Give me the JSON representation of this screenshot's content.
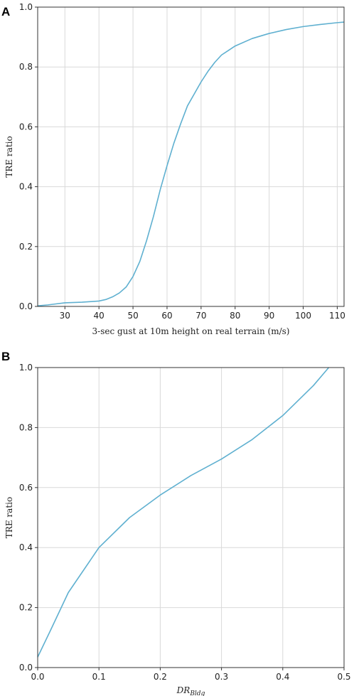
{
  "chart_data": [
    {
      "panel": "A",
      "type": "line",
      "title": "",
      "xlabel": "3-sec gust at 10m height on real terrain (m/s)",
      "ylabel": "TRE ratio",
      "xlim": [
        22,
        112
      ],
      "ylim": [
        0,
        1.0
      ],
      "xticks": [
        30,
        40,
        50,
        60,
        70,
        80,
        90,
        100,
        110
      ],
      "yticks": [
        0.0,
        0.2,
        0.4,
        0.6,
        0.8,
        1.0
      ],
      "xtick_labels": [
        "30",
        "40",
        "50",
        "60",
        "70",
        "80",
        "90",
        "100",
        "110"
      ],
      "ytick_labels": [
        "0.0",
        "0.2",
        "0.4",
        "0.6",
        "0.8",
        "1.0"
      ],
      "grid": true,
      "color": "#5fb0d0",
      "series": [
        {
          "x": [
            22,
            25,
            30,
            35,
            40,
            42,
            44,
            46,
            48,
            50,
            52,
            54,
            56,
            58,
            60,
            62,
            64,
            66,
            68,
            70,
            72,
            74,
            76,
            78,
            80,
            85,
            90,
            95,
            100,
            105,
            110,
            112
          ],
          "y": [
            0.002,
            0.005,
            0.012,
            0.014,
            0.018,
            0.023,
            0.032,
            0.045,
            0.065,
            0.1,
            0.15,
            0.22,
            0.3,
            0.39,
            0.47,
            0.545,
            0.61,
            0.67,
            0.71,
            0.75,
            0.785,
            0.815,
            0.84,
            0.855,
            0.87,
            0.895,
            0.912,
            0.925,
            0.935,
            0.942,
            0.948,
            0.95
          ]
        }
      ]
    },
    {
      "panel": "B",
      "type": "line",
      "title": "",
      "xlabel_main": "DR",
      "xlabel_sub": "Bldg",
      "ylabel": "TRE ratio",
      "xlim": [
        0,
        0.5
      ],
      "ylim": [
        0,
        1.0
      ],
      "xticks": [
        0.0,
        0.1,
        0.2,
        0.3,
        0.4,
        0.5
      ],
      "yticks": [
        0.0,
        0.2,
        0.4,
        0.6,
        0.8,
        1.0
      ],
      "xtick_labels": [
        "0.0",
        "0.1",
        "0.2",
        "0.3",
        "0.4",
        "0.5"
      ],
      "ytick_labels": [
        "0.0",
        "0.2",
        "0.4",
        "0.6",
        "0.8",
        "1.0"
      ],
      "grid": true,
      "color": "#5fb0d0",
      "series": [
        {
          "x": [
            0.0,
            0.02,
            0.05,
            0.1,
            0.15,
            0.2,
            0.25,
            0.3,
            0.35,
            0.4,
            0.45,
            0.475
          ],
          "y": [
            0.035,
            0.12,
            0.25,
            0.4,
            0.5,
            0.575,
            0.64,
            0.695,
            0.76,
            0.84,
            0.94,
            1.0
          ]
        }
      ]
    }
  ]
}
